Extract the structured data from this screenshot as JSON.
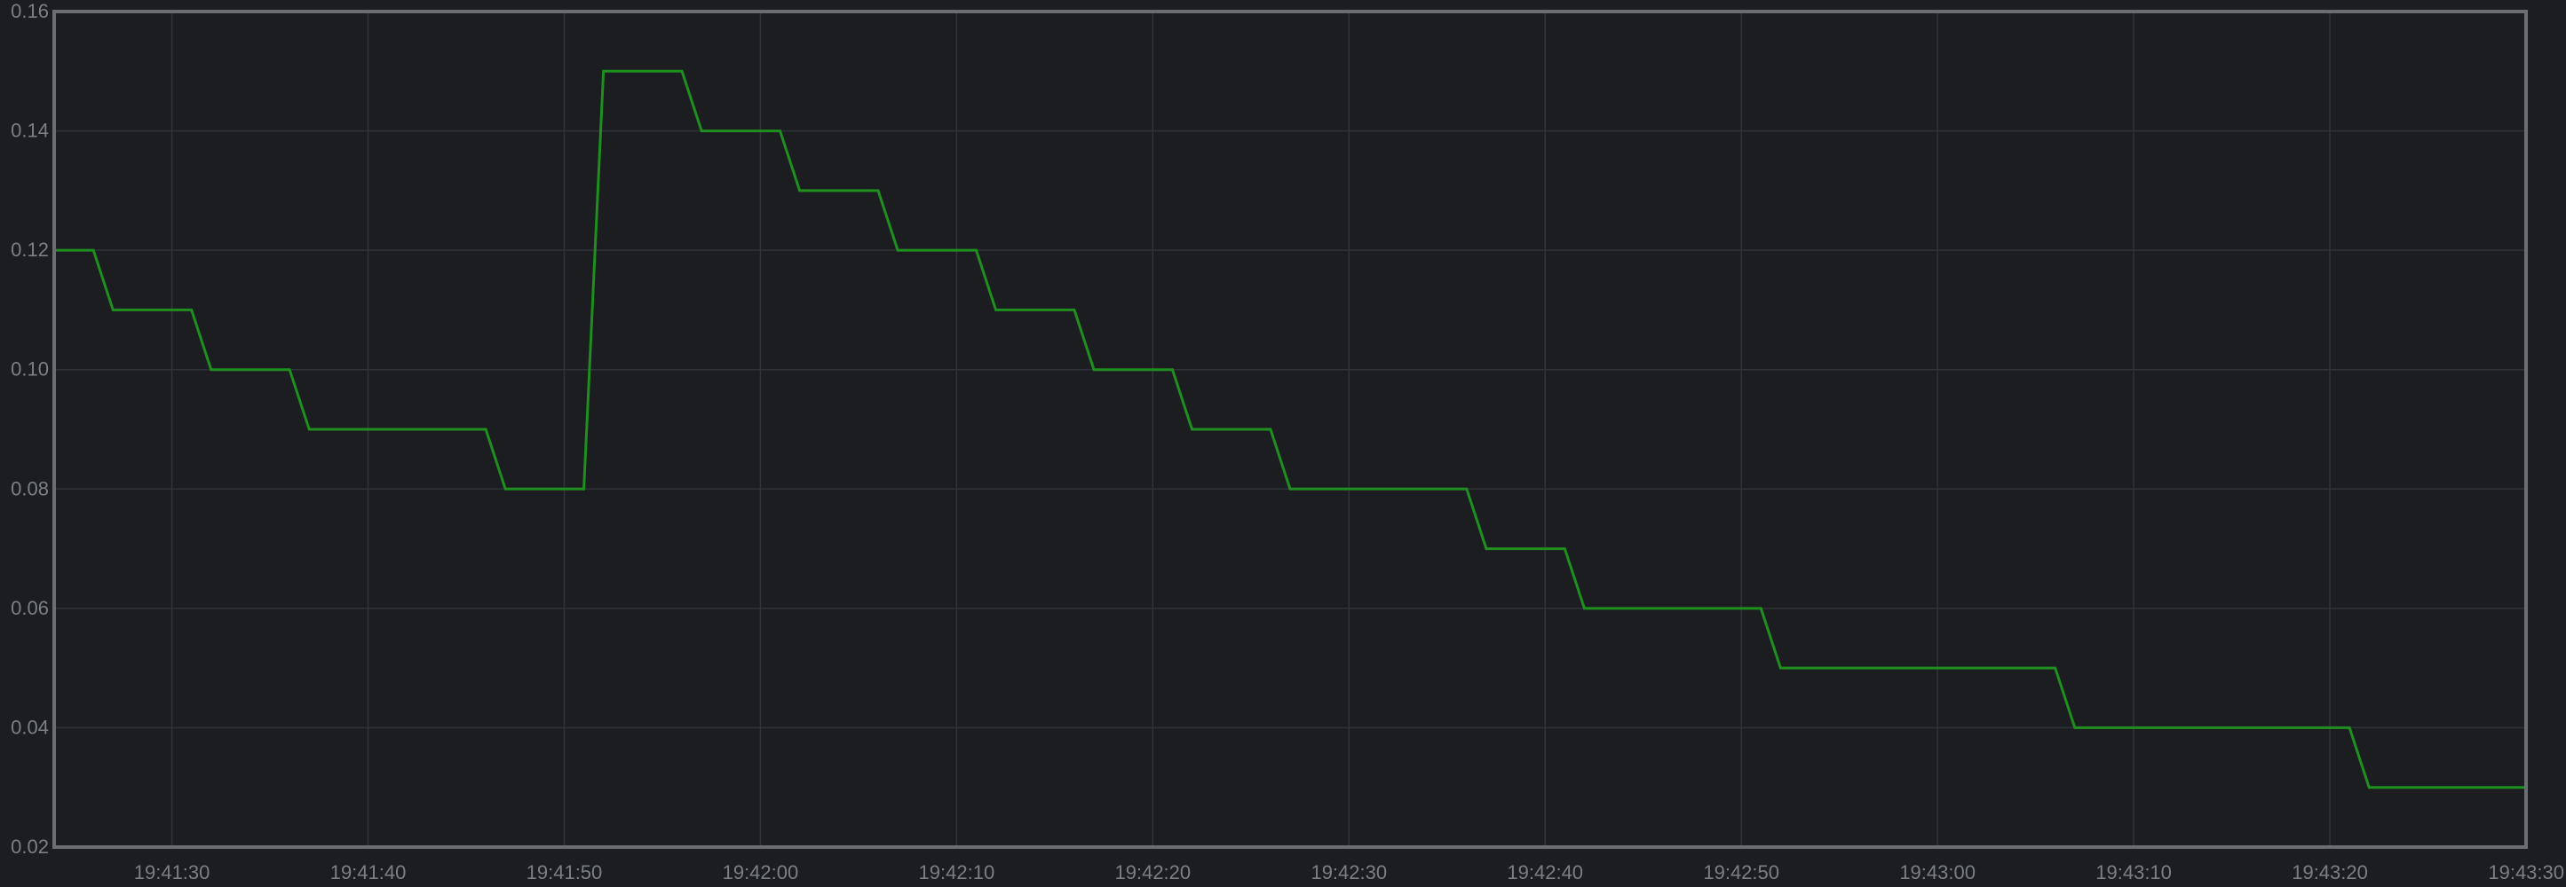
{
  "colors": {
    "background": "#1b1d20",
    "plot_background": "#1b1d20",
    "grid": "#30343a",
    "frame": "#6a6d72",
    "tick_text": "#7b7f86",
    "series": "#1f8f1f"
  },
  "chart_data": {
    "type": "line",
    "title": "",
    "xlabel": "",
    "ylabel": "",
    "grid": true,
    "legend": "none",
    "xlim": [
      "19:41:24",
      "19:43:30"
    ],
    "ylim": [
      0.02,
      0.16
    ],
    "x_ticks": [
      "19:41:30",
      "19:41:40",
      "19:41:50",
      "19:42:00",
      "19:42:10",
      "19:42:20",
      "19:42:30",
      "19:42:40",
      "19:42:50",
      "19:43:00",
      "19:43:10",
      "19:43:20",
      "19:43:30"
    ],
    "y_ticks": [
      "0.02",
      "0.04",
      "0.06",
      "0.08",
      "0.10",
      "0.12",
      "0.14",
      "0.16"
    ],
    "series": [
      {
        "color": "#1f8f1f",
        "points": [
          {
            "x": "19:41:24",
            "y": 0.12
          },
          {
            "x": "19:41:26",
            "y": 0.12
          },
          {
            "x": "19:41:27",
            "y": 0.11
          },
          {
            "x": "19:41:31",
            "y": 0.11
          },
          {
            "x": "19:41:32",
            "y": 0.1
          },
          {
            "x": "19:41:36",
            "y": 0.1
          },
          {
            "x": "19:41:37",
            "y": 0.09
          },
          {
            "x": "19:41:46",
            "y": 0.09
          },
          {
            "x": "19:41:47",
            "y": 0.08
          },
          {
            "x": "19:41:51",
            "y": 0.08
          },
          {
            "x": "19:41:52",
            "y": 0.15
          },
          {
            "x": "19:41:56",
            "y": 0.15
          },
          {
            "x": "19:41:57",
            "y": 0.14
          },
          {
            "x": "19:42:01",
            "y": 0.14
          },
          {
            "x": "19:42:02",
            "y": 0.13
          },
          {
            "x": "19:42:06",
            "y": 0.13
          },
          {
            "x": "19:42:07",
            "y": 0.12
          },
          {
            "x": "19:42:11",
            "y": 0.12
          },
          {
            "x": "19:42:12",
            "y": 0.11
          },
          {
            "x": "19:42:16",
            "y": 0.11
          },
          {
            "x": "19:42:17",
            "y": 0.1
          },
          {
            "x": "19:42:21",
            "y": 0.1
          },
          {
            "x": "19:42:22",
            "y": 0.09
          },
          {
            "x": "19:42:26",
            "y": 0.09
          },
          {
            "x": "19:42:27",
            "y": 0.08
          },
          {
            "x": "19:42:36",
            "y": 0.08
          },
          {
            "x": "19:42:37",
            "y": 0.07
          },
          {
            "x": "19:42:41",
            "y": 0.07
          },
          {
            "x": "19:42:42",
            "y": 0.06
          },
          {
            "x": "19:42:51",
            "y": 0.06
          },
          {
            "x": "19:42:52",
            "y": 0.05
          },
          {
            "x": "19:43:06",
            "y": 0.05
          },
          {
            "x": "19:43:07",
            "y": 0.04
          },
          {
            "x": "19:43:21",
            "y": 0.04
          },
          {
            "x": "19:43:22",
            "y": 0.03
          },
          {
            "x": "19:43:30",
            "y": 0.03
          }
        ]
      }
    ]
  }
}
